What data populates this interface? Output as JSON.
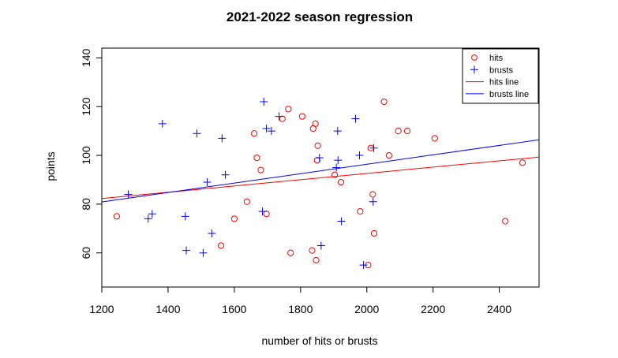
{
  "chart_data": {
    "type": "scatter",
    "title": "2021-2022 season regression",
    "xlabel": "number of hits or brusts",
    "ylabel": "points",
    "xlim": [
      1200,
      2520
    ],
    "ylim": [
      46,
      144
    ],
    "xticks": [
      1200,
      1400,
      1600,
      1800,
      2000,
      2200,
      2400
    ],
    "yticks": [
      60,
      80,
      100,
      120,
      140
    ],
    "grid": false,
    "legend_position": "top-right",
    "colors": {
      "hits": "#ff0000",
      "brusts": "#0000ff"
    },
    "series": [
      {
        "name": "hits",
        "marker": "circle",
        "color": "#ff0000",
        "points": [
          [
            1245,
            75
          ],
          [
            1560,
            63
          ],
          [
            1600,
            74
          ],
          [
            1638,
            81
          ],
          [
            1660,
            109
          ],
          [
            1668,
            99
          ],
          [
            1680,
            94
          ],
          [
            1697,
            76
          ],
          [
            1745,
            115
          ],
          [
            1763,
            119
          ],
          [
            1770,
            60
          ],
          [
            1805,
            116
          ],
          [
            1835,
            61
          ],
          [
            1838,
            111
          ],
          [
            1845,
            113
          ],
          [
            1847,
            57
          ],
          [
            1850,
            98
          ],
          [
            1852,
            104
          ],
          [
            1903,
            92
          ],
          [
            1922,
            89
          ],
          [
            1980,
            77
          ],
          [
            2004,
            55
          ],
          [
            2012,
            103
          ],
          [
            2018,
            84
          ],
          [
            2022,
            68
          ],
          [
            2052,
            122
          ],
          [
            2067,
            100
          ],
          [
            2095,
            110
          ],
          [
            2122,
            110
          ],
          [
            2205,
            107
          ],
          [
            2418,
            73
          ],
          [
            2470,
            97
          ]
        ]
      },
      {
        "name": "brusts",
        "marker": "plus",
        "color": "#0000ff",
        "points": [
          [
            1280,
            84
          ],
          [
            1340,
            74
          ],
          [
            1352,
            76
          ],
          [
            1383,
            113
          ],
          [
            1452,
            75
          ],
          [
            1455,
            61
          ],
          [
            1487,
            109
          ],
          [
            1506,
            60
          ],
          [
            1518,
            89
          ],
          [
            1532,
            68
          ],
          [
            1563,
            107
          ],
          [
            1573,
            92
          ],
          [
            1685,
            77
          ],
          [
            1689,
            122
          ],
          [
            1697,
            111
          ],
          [
            1712,
            110
          ],
          [
            1735,
            116
          ],
          [
            1857,
            99
          ],
          [
            1862,
            63
          ],
          [
            1908,
            95
          ],
          [
            1912,
            110
          ],
          [
            1913,
            98
          ],
          [
            1923,
            73
          ],
          [
            1966,
            115
          ],
          [
            1978,
            100
          ],
          [
            1990,
            55
          ],
          [
            2019,
            81
          ],
          [
            2021,
            103
          ]
        ]
      }
    ],
    "lines": [
      {
        "name": "hits line",
        "color": "#ff0000",
        "x": [
          1200,
          2520
        ],
        "y": [
          82.3,
          99.3
        ]
      },
      {
        "name": "brusts line",
        "color": "#0000ff",
        "x": [
          1200,
          2520
        ],
        "y": [
          80.9,
          106.4
        ]
      }
    ],
    "legend": [
      {
        "label": "hits",
        "symbol": "circle",
        "color": "#ff0000"
      },
      {
        "label": "brusts",
        "symbol": "plus",
        "color": "#0000ff"
      },
      {
        "label": "hits line",
        "symbol": "line",
        "color": "#ff0000"
      },
      {
        "label": "brusts line",
        "symbol": "line",
        "color": "#0000ff"
      }
    ]
  }
}
